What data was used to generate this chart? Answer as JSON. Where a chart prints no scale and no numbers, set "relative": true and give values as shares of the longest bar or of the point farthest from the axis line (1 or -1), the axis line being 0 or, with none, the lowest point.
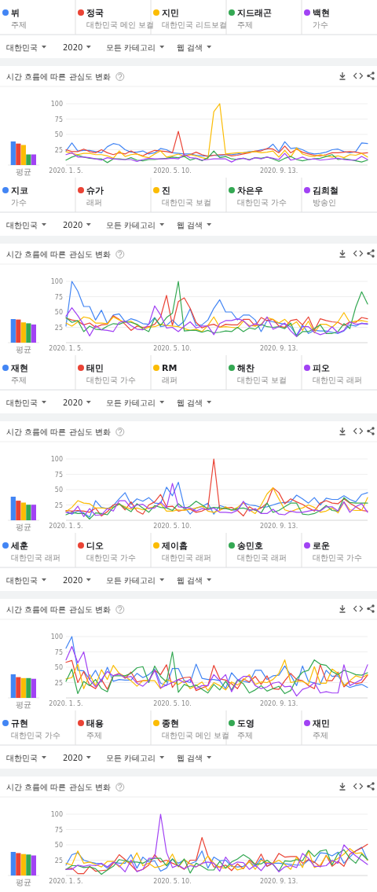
{
  "chart_data": [
    {
      "type": "line",
      "title": "시간 흐름에 따른 관심도 변화",
      "legend": "top",
      "grid": "y",
      "annotations": [
        "주제",
        "대한민국 메인 보컬",
        "대한민국 리드보컬",
        "주제",
        "가수",
        "대한민국",
        "2020",
        "모든 카테고리",
        "웹 검색"
      ],
      "x": [
        "2020-01-05",
        "2020-01-12",
        "2020-01-19",
        "2020-01-26",
        "2020-02-02",
        "2020-02-09",
        "2020-02-16",
        "2020-02-23",
        "2020-03-01",
        "2020-03-08",
        "2020-03-15",
        "2020-03-22",
        "2020-03-29",
        "2020-04-05",
        "2020-04-12",
        "2020-04-19",
        "2020-04-26",
        "2020-05-03",
        "2020-05-10",
        "2020-05-17",
        "2020-05-24",
        "2020-05-31",
        "2020-06-07",
        "2020-06-14",
        "2020-06-21",
        "2020-06-28",
        "2020-07-05",
        "2020-07-12",
        "2020-07-19",
        "2020-07-26",
        "2020-08-02",
        "2020-08-09",
        "2020-08-16",
        "2020-08-23",
        "2020-08-30",
        "2020-09-06",
        "2020-09-13",
        "2020-09-20",
        "2020-09-27",
        "2020-10-04",
        "2020-10-11",
        "2020-10-18",
        "2020-10-25",
        "2020-11-01",
        "2020-11-08",
        "2020-11-15",
        "2020-11-22",
        "2020-11-29",
        "2020-12-06",
        "2020-12-13",
        "2020-12-20",
        "2020-12-27"
      ],
      "xlim": [
        "2020-01-05",
        "2020-12-27"
      ],
      "xticks": [
        {
          "value": "2020-01-05",
          "label": "2020. 1. 5."
        },
        {
          "value": "2020-05-10",
          "label": "2020. 5. 10."
        },
        {
          "value": "2020-09-13",
          "label": "2020. 9. 13."
        }
      ],
      "ylim": [
        0,
        100
      ],
      "yticks": [
        25,
        50,
        75,
        100
      ],
      "series": [
        {
          "name": "뷔",
          "color": "#4285f4",
          "values": [
            23,
            36,
            23,
            24,
            24,
            22,
            20,
            30,
            35,
            33,
            25,
            21,
            21,
            23,
            18,
            20,
            27,
            25,
            20,
            19,
            18,
            18,
            16,
            15,
            15,
            16,
            15,
            17,
            17,
            18,
            20,
            22,
            22,
            25,
            26,
            34,
            22,
            38,
            27,
            28,
            25,
            20,
            18,
            19,
            21,
            25,
            26,
            22,
            20,
            22,
            36,
            35
          ]
        },
        {
          "name": "정국",
          "color": "#ea4335",
          "values": [
            25,
            22,
            22,
            26,
            22,
            20,
            25,
            20,
            17,
            20,
            18,
            23,
            18,
            15,
            20,
            24,
            23,
            22,
            20,
            55,
            15,
            17,
            21,
            17,
            14,
            16,
            17,
            17,
            15,
            16,
            18,
            20,
            23,
            23,
            27,
            26,
            20,
            31,
            20,
            26,
            21,
            18,
            16,
            15,
            17,
            20,
            20,
            21,
            22,
            21,
            19,
            20
          ]
        },
        {
          "name": "지민",
          "color": "#fbbc04",
          "values": [
            22,
            19,
            17,
            19,
            19,
            17,
            17,
            15,
            11,
            23,
            14,
            17,
            18,
            14,
            12,
            18,
            23,
            13,
            15,
            18,
            14,
            17,
            15,
            12,
            10,
            87,
            100,
            18,
            19,
            20,
            20,
            21,
            22,
            20,
            21,
            23,
            13,
            24,
            13,
            28,
            18,
            15,
            14,
            17,
            15,
            13,
            15,
            12,
            17,
            16,
            19,
            13
          ]
        },
        {
          "name": "지드래곤",
          "color": "#34a853",
          "values": [
            8,
            13,
            16,
            13,
            11,
            10,
            10,
            4,
            10,
            10,
            9,
            12,
            8,
            7,
            9,
            9,
            10,
            11,
            13,
            12,
            14,
            8,
            11,
            7,
            12,
            23,
            12,
            14,
            10,
            9,
            11,
            9,
            12,
            11,
            13,
            10,
            6,
            11,
            14,
            9,
            7,
            9,
            10,
            11,
            14,
            17,
            9,
            10,
            9,
            7,
            5,
            8
          ]
        },
        {
          "name": "백현",
          "color": "#a142f4",
          "values": [
            17,
            20,
            13,
            13,
            12,
            10,
            8,
            12,
            10,
            9,
            9,
            9,
            6,
            9,
            11,
            10,
            10,
            10,
            11,
            10,
            17,
            12,
            11,
            8,
            9,
            10,
            10,
            10,
            5,
            10,
            11,
            8,
            12,
            10,
            13,
            11,
            9,
            19,
            8,
            10,
            13,
            9,
            10,
            8,
            9,
            10,
            11,
            9,
            8,
            8,
            14,
            9
          ]
        }
      ]
    },
    {
      "type": "bar",
      "relative": true,
      "categories": [
        "평균"
      ],
      "series": [
        {
          "color": "#4285f4",
          "values": [
            1
          ]
        },
        {
          "color": "#ea4335",
          "values": [
            0.91
          ]
        },
        {
          "color": "#fbbc04",
          "values": [
            0.85
          ]
        },
        {
          "color": "#34a853",
          "values": [
            0.45
          ]
        },
        {
          "color": "#a142f4",
          "values": [
            0.45
          ]
        }
      ]
    },
    {
      "type": "line",
      "title": "시간 흐름에 따른 관심도 변화",
      "legend": "top",
      "grid": "y",
      "annotations": [
        "가수",
        "래퍼",
        "대한민국 보컬",
        "대한민국 가수",
        "방송인",
        "대한민국",
        "2020",
        "모든 카테고리",
        "웹 검색"
      ],
      "x": [
        "2020-01-05",
        "2020-01-12",
        "2020-01-19",
        "2020-01-26",
        "2020-02-02",
        "2020-02-09",
        "2020-02-16",
        "2020-02-23",
        "2020-03-01",
        "2020-03-08",
        "2020-03-15",
        "2020-03-22",
        "2020-03-29",
        "2020-04-05",
        "2020-04-12",
        "2020-04-19",
        "2020-04-26",
        "2020-05-03",
        "2020-05-10",
        "2020-05-17",
        "2020-05-24",
        "2020-05-31",
        "2020-06-07",
        "2020-06-14",
        "2020-06-21",
        "2020-06-28",
        "2020-07-05",
        "2020-07-12",
        "2020-07-19",
        "2020-07-26",
        "2020-08-02",
        "2020-08-09",
        "2020-08-16",
        "2020-08-23",
        "2020-08-30",
        "2020-09-06",
        "2020-09-13",
        "2020-09-20",
        "2020-09-27",
        "2020-10-04",
        "2020-10-11",
        "2020-10-18",
        "2020-10-25",
        "2020-11-01",
        "2020-11-08",
        "2020-11-15",
        "2020-11-22",
        "2020-11-29",
        "2020-12-06",
        "2020-12-13",
        "2020-12-20",
        "2020-12-27"
      ],
      "xlim": [
        "2020-01-05",
        "2020-12-27"
      ],
      "xticks": [
        {
          "value": "2020-01-05",
          "label": "2020. 1. 5."
        },
        {
          "value": "2020-05-10",
          "label": "2020. 5. 10."
        },
        {
          "value": "2020-09-13",
          "label": "2020. 9. 13."
        }
      ],
      "ylim": [
        0,
        100
      ],
      "yticks": [
        25,
        50,
        75,
        100
      ],
      "series": [
        {
          "name": "지코",
          "color": "#4285f4",
          "values": [
            27,
            100,
            84,
            59,
            59,
            37,
            53,
            31,
            45,
            47,
            34,
            39,
            36,
            31,
            30,
            41,
            26,
            28,
            37,
            27,
            35,
            55,
            28,
            29,
            37,
            56,
            70,
            50,
            50,
            37,
            45,
            45,
            37,
            18,
            36,
            34,
            32,
            30,
            26,
            12,
            29,
            15,
            20,
            19,
            19,
            17,
            15,
            19,
            29,
            27,
            32,
            30
          ]
        },
        {
          "name": "슈가",
          "color": "#ea4335",
          "values": [
            40,
            37,
            35,
            29,
            32,
            25,
            29,
            30,
            44,
            38,
            30,
            20,
            27,
            25,
            26,
            30,
            42,
            77,
            28,
            67,
            73,
            56,
            33,
            24,
            28,
            30,
            25,
            30,
            29,
            29,
            38,
            38,
            27,
            41,
            36,
            38,
            27,
            25,
            36,
            38,
            29,
            42,
            20,
            39,
            36,
            34,
            33,
            28,
            34,
            33,
            41,
            39
          ]
        },
        {
          "name": "진",
          "color": "#fbbc04",
          "values": [
            32,
            27,
            34,
            42,
            40,
            32,
            32,
            31,
            42,
            37,
            33,
            35,
            29,
            22,
            25,
            26,
            30,
            28,
            27,
            26,
            23,
            20,
            22,
            18,
            28,
            42,
            25,
            26,
            25,
            24,
            35,
            28,
            27,
            30,
            41,
            38,
            32,
            38,
            28,
            34,
            20,
            35,
            16,
            30,
            30,
            25,
            34,
            49,
            33,
            35,
            36,
            34
          ]
        },
        {
          "name": "차은우",
          "color": "#34a853",
          "values": [
            41,
            33,
            36,
            18,
            27,
            22,
            21,
            27,
            31,
            30,
            34,
            33,
            30,
            23,
            18,
            40,
            28,
            41,
            48,
            100,
            19,
            20,
            20,
            17,
            20,
            16,
            17,
            19,
            18,
            25,
            18,
            24,
            22,
            30,
            26,
            25,
            26,
            23,
            32,
            10,
            18,
            18,
            23,
            29,
            15,
            15,
            18,
            31,
            23,
            58,
            83,
            63
          ]
        },
        {
          "name": "김희철",
          "color": "#a142f4",
          "values": [
            43,
            57,
            44,
            29,
            11,
            28,
            21,
            20,
            18,
            33,
            35,
            28,
            22,
            21,
            30,
            60,
            45,
            24,
            25,
            18,
            27,
            34,
            24,
            27,
            27,
            13,
            31,
            36,
            36,
            39,
            36,
            26,
            31,
            28,
            42,
            22,
            26,
            32,
            19,
            10,
            26,
            26,
            17,
            13,
            16,
            26,
            16,
            20,
            34,
            30,
            31,
            31
          ]
        }
      ]
    },
    {
      "type": "bar",
      "relative": true,
      "categories": [
        "평균"
      ],
      "series": [
        {
          "color": "#4285f4",
          "values": [
            1
          ]
        },
        {
          "color": "#ea4335",
          "values": [
            0.98
          ]
        },
        {
          "color": "#fbbc04",
          "values": [
            0.86
          ]
        },
        {
          "color": "#34a853",
          "values": [
            0.82
          ]
        },
        {
          "color": "#a142f4",
          "values": [
            0.77
          ]
        }
      ]
    },
    {
      "type": "line",
      "title": "시간 흐름에 따른 관심도 변화",
      "legend": "top",
      "grid": "y",
      "annotations": [
        "주제",
        "대한민국 가수",
        "래퍼",
        "대한민국 보컬",
        "대한민국 래퍼",
        "대한민국",
        "2020",
        "모든 카테고리",
        "웹 검색"
      ],
      "x": [
        "2020-01-05",
        "2020-01-12",
        "2020-01-19",
        "2020-01-26",
        "2020-02-02",
        "2020-02-09",
        "2020-02-16",
        "2020-02-23",
        "2020-03-01",
        "2020-03-08",
        "2020-03-15",
        "2020-03-22",
        "2020-03-29",
        "2020-04-05",
        "2020-04-12",
        "2020-04-19",
        "2020-04-26",
        "2020-05-03",
        "2020-05-10",
        "2020-05-17",
        "2020-05-24",
        "2020-05-31",
        "2020-06-07",
        "2020-06-14",
        "2020-06-21",
        "2020-06-28",
        "2020-07-05",
        "2020-07-12",
        "2020-07-19",
        "2020-07-26",
        "2020-08-02",
        "2020-08-09",
        "2020-08-16",
        "2020-08-23",
        "2020-08-30",
        "2020-09-06",
        "2020-09-13",
        "2020-09-20",
        "2020-09-27",
        "2020-10-04",
        "2020-10-11",
        "2020-10-18",
        "2020-10-25",
        "2020-11-01",
        "2020-11-08",
        "2020-11-15",
        "2020-11-22",
        "2020-11-29",
        "2020-12-06",
        "2020-12-13",
        "2020-12-20",
        "2020-12-27"
      ],
      "xlim": [
        "2020-01-05",
        "2020-12-27"
      ],
      "xticks": [
        {
          "value": "2020-01-05",
          "label": "2020. 1. 5."
        },
        {
          "value": "2020-05-10",
          "label": "2020. 5. 10."
        },
        {
          "value": "2020-09-13",
          "label": "2020. 9. 13."
        }
      ],
      "ylim": [
        0,
        100
      ],
      "yticks": [
        25,
        50,
        75,
        100
      ],
      "series": [
        {
          "name": "재현",
          "color": "#4285f4",
          "values": [
            15,
            10,
            15,
            12,
            5,
            32,
            21,
            19,
            24,
            35,
            45,
            26,
            35,
            31,
            37,
            28,
            27,
            54,
            40,
            62,
            22,
            10,
            20,
            22,
            28,
            10,
            24,
            21,
            16,
            17,
            29,
            25,
            24,
            21,
            22,
            25,
            28,
            29,
            30,
            41,
            35,
            28,
            37,
            25,
            36,
            34,
            34,
            40,
            34,
            30,
            42,
            45
          ]
        },
        {
          "name": "태민",
          "color": "#ea4335",
          "values": [
            16,
            15,
            16,
            15,
            13,
            20,
            7,
            14,
            25,
            27,
            17,
            30,
            15,
            10,
            25,
            30,
            42,
            22,
            23,
            15,
            17,
            18,
            13,
            15,
            20,
            100,
            17,
            20,
            21,
            16,
            7,
            22,
            16,
            20,
            28,
            53,
            45,
            27,
            35,
            30,
            26,
            20,
            15,
            28,
            32,
            28,
            27,
            35,
            28,
            22,
            16,
            15
          ]
        },
        {
          "name": "RM",
          "color": "#fbbc04",
          "values": [
            14,
            21,
            32,
            28,
            27,
            20,
            20,
            19,
            21,
            26,
            22,
            18,
            20,
            17,
            20,
            22,
            27,
            15,
            15,
            17,
            16,
            18,
            20,
            23,
            15,
            13,
            16,
            22,
            16,
            21,
            29,
            17,
            11,
            25,
            43,
            53,
            35,
            17,
            14,
            18,
            20,
            25,
            21,
            13,
            15,
            20,
            12,
            30,
            17,
            16,
            16,
            37
          ]
        },
        {
          "name": "해찬",
          "color": "#34a853",
          "values": [
            9,
            13,
            11,
            11,
            2,
            12,
            11,
            9,
            21,
            27,
            20,
            14,
            27,
            20,
            13,
            24,
            21,
            20,
            16,
            27,
            19,
            23,
            31,
            25,
            19,
            21,
            20,
            19,
            17,
            19,
            20,
            17,
            17,
            12,
            28,
            13,
            16,
            22,
            28,
            28,
            10,
            9,
            11,
            16,
            24,
            16,
            15,
            37,
            29,
            28,
            28,
            28
          ]
        },
        {
          "name": "피오",
          "color": "#a142f4",
          "values": [
            13,
            11,
            23,
            6,
            19,
            8,
            9,
            19,
            15,
            32,
            32,
            20,
            25,
            26,
            19,
            20,
            30,
            20,
            60,
            22,
            21,
            20,
            15,
            19,
            17,
            20,
            13,
            13,
            12,
            16,
            31,
            15,
            19,
            11,
            11,
            18,
            10,
            9,
            15,
            13,
            13,
            15,
            17,
            15,
            22,
            22,
            15,
            30,
            13,
            22,
            27,
            13
          ]
        }
      ]
    },
    {
      "type": "bar",
      "relative": true,
      "categories": [
        "평균"
      ],
      "series": [
        {
          "color": "#4285f4",
          "values": [
            1
          ]
        },
        {
          "color": "#ea4335",
          "values": [
            0.83
          ]
        },
        {
          "color": "#fbbc04",
          "values": [
            0.75
          ]
        },
        {
          "color": "#34a853",
          "values": [
            0.66
          ]
        },
        {
          "color": "#a142f4",
          "values": [
            0.66
          ]
        }
      ]
    },
    {
      "type": "line",
      "title": "시간 흐름에 따른 관심도 변화",
      "legend": "top",
      "grid": "y",
      "annotations": [
        "대한민국 래퍼",
        "대한민국 가수",
        "대한민국 래퍼",
        "대한민국 래퍼",
        "대한민국 가수",
        "대한민국",
        "2020",
        "모든 카테고리",
        "웹 검색"
      ],
      "x": [
        "2020-01-05",
        "2020-01-12",
        "2020-01-19",
        "2020-01-26",
        "2020-02-02",
        "2020-02-09",
        "2020-02-16",
        "2020-02-23",
        "2020-03-01",
        "2020-03-08",
        "2020-03-15",
        "2020-03-22",
        "2020-03-29",
        "2020-04-05",
        "2020-04-12",
        "2020-04-19",
        "2020-04-26",
        "2020-05-03",
        "2020-05-10",
        "2020-05-17",
        "2020-05-24",
        "2020-05-31",
        "2020-06-07",
        "2020-06-14",
        "2020-06-21",
        "2020-06-28",
        "2020-07-05",
        "2020-07-12",
        "2020-07-19",
        "2020-07-26",
        "2020-08-02",
        "2020-08-09",
        "2020-08-16",
        "2020-08-23",
        "2020-08-30",
        "2020-09-06",
        "2020-09-13",
        "2020-09-20",
        "2020-09-27",
        "2020-10-04",
        "2020-10-11",
        "2020-10-18",
        "2020-10-25",
        "2020-11-01",
        "2020-11-08",
        "2020-11-15",
        "2020-11-22",
        "2020-11-29",
        "2020-12-06",
        "2020-12-13",
        "2020-12-20",
        "2020-12-27"
      ],
      "xlim": [
        "2020-01-05",
        "2020-12-27"
      ],
      "xticks": [
        {
          "value": "2020-01-05",
          "label": "2020. 1. 5."
        },
        {
          "value": "2020-05-10",
          "label": "2020. 5. 10."
        },
        {
          "value": "2020-09-13",
          "label": "2020. 9. 13."
        }
      ],
      "ylim": [
        0,
        100
      ],
      "yticks": [
        25,
        50,
        75,
        100
      ],
      "series": [
        {
          "name": "세훈",
          "color": "#4285f4",
          "values": [
            81,
            100,
            45,
            44,
            30,
            45,
            26,
            50,
            27,
            30,
            29,
            29,
            40,
            33,
            38,
            47,
            24,
            20,
            48,
            48,
            28,
            25,
            55,
            32,
            30,
            30,
            28,
            15,
            41,
            30,
            27,
            25,
            45,
            45,
            30,
            36,
            37,
            52,
            37,
            20,
            52,
            27,
            24,
            22,
            45,
            35,
            36,
            22,
            17,
            20,
            22,
            17
          ]
        },
        {
          "name": "디오",
          "color": "#ea4335",
          "values": [
            58,
            61,
            25,
            43,
            21,
            15,
            30,
            14,
            36,
            40,
            32,
            42,
            26,
            28,
            28,
            45,
            38,
            54,
            17,
            30,
            33,
            34,
            12,
            16,
            20,
            53,
            31,
            29,
            23,
            15,
            31,
            26,
            35,
            22,
            36,
            15,
            14,
            28,
            40,
            30,
            28,
            20,
            15,
            54,
            28,
            28,
            42,
            18,
            27,
            23,
            25,
            37
          ]
        },
        {
          "name": "제이홉",
          "color": "#fbbc04",
          "values": [
            31,
            33,
            55,
            15,
            38,
            20,
            46,
            30,
            53,
            40,
            35,
            28,
            19,
            28,
            28,
            28,
            15,
            30,
            26,
            22,
            28,
            15,
            20,
            26,
            12,
            25,
            20,
            13,
            26,
            21,
            29,
            38,
            22,
            26,
            25,
            30,
            40,
            62,
            25,
            27,
            27,
            22,
            51,
            24,
            24,
            47,
            40,
            20,
            28,
            36,
            33,
            38
          ]
        },
        {
          "name": "송민호",
          "color": "#34a853",
          "values": [
            27,
            47,
            7,
            27,
            20,
            30,
            15,
            10,
            36,
            36,
            36,
            40,
            49,
            51,
            25,
            52,
            35,
            26,
            75,
            9,
            22,
            18,
            21,
            14,
            8,
            22,
            13,
            27,
            13,
            29,
            23,
            8,
            13,
            20,
            11,
            15,
            19,
            7,
            12,
            31,
            42,
            45,
            62,
            55,
            53,
            43,
            38,
            45,
            42,
            38,
            37,
            41
          ]
        },
        {
          "name": "로운",
          "color": "#a142f4",
          "values": [
            62,
            84,
            57,
            75,
            30,
            18,
            30,
            43,
            36,
            39,
            33,
            35,
            24,
            19,
            28,
            45,
            16,
            21,
            25,
            30,
            25,
            30,
            15,
            20,
            20,
            38,
            28,
            38,
            10,
            28,
            35,
            35,
            20,
            15,
            18,
            24,
            26,
            18,
            19,
            3,
            14,
            17,
            25,
            8,
            10,
            8,
            8,
            54,
            20,
            25,
            30,
            54
          ]
        }
      ]
    },
    {
      "type": "bar",
      "relative": true,
      "categories": [
        "평균"
      ],
      "series": [
        {
          "color": "#4285f4",
          "values": [
            1
          ]
        },
        {
          "color": "#ea4335",
          "values": [
            0.88
          ]
        },
        {
          "color": "#fbbc04",
          "values": [
            0.84
          ]
        },
        {
          "color": "#34a853",
          "values": [
            0.84
          ]
        },
        {
          "color": "#a142f4",
          "values": [
            0.81
          ]
        }
      ]
    },
    {
      "type": "line",
      "title": "시간 흐름에 따른 관심도 변화",
      "legend": "top",
      "grid": "y",
      "annotations": [
        "대한민국 가수",
        "주제",
        "대한민국 메인 보컬",
        "주제",
        "주제",
        "대한민국",
        "2020",
        "모든 카테고리",
        "웹 검색"
      ],
      "x": [
        "2020-01-05",
        "2020-01-12",
        "2020-01-19",
        "2020-01-26",
        "2020-02-02",
        "2020-02-09",
        "2020-02-16",
        "2020-02-23",
        "2020-03-01",
        "2020-03-08",
        "2020-03-15",
        "2020-03-22",
        "2020-03-29",
        "2020-04-05",
        "2020-04-12",
        "2020-04-19",
        "2020-04-26",
        "2020-05-03",
        "2020-05-10",
        "2020-05-17",
        "2020-05-24",
        "2020-05-31",
        "2020-06-07",
        "2020-06-14",
        "2020-06-21",
        "2020-06-28",
        "2020-07-05",
        "2020-07-12",
        "2020-07-19",
        "2020-07-26",
        "2020-08-02",
        "2020-08-09",
        "2020-08-16",
        "2020-08-23",
        "2020-08-30",
        "2020-09-06",
        "2020-09-13",
        "2020-09-20",
        "2020-09-27",
        "2020-10-04",
        "2020-10-11",
        "2020-10-18",
        "2020-10-25",
        "2020-11-01",
        "2020-11-08",
        "2020-11-15",
        "2020-11-22",
        "2020-11-29",
        "2020-12-06",
        "2020-12-13",
        "2020-12-20",
        "2020-12-27"
      ],
      "xlim": [
        "2020-01-05",
        "2020-12-27"
      ],
      "xticks": [
        {
          "value": "2020-01-05",
          "label": "2020. 1. 5."
        },
        {
          "value": "2020-05-10",
          "label": "2020. 5. 10."
        },
        {
          "value": "2020-09-13",
          "label": "2020. 9. 13."
        }
      ],
      "ylim": [
        0,
        100
      ],
      "yticks": [
        25,
        50,
        75,
        100
      ],
      "series": [
        {
          "name": "규현",
          "color": "#4285f4",
          "values": [
            17,
            34,
            37,
            25,
            22,
            20,
            19,
            12,
            22,
            20,
            20,
            34,
            12,
            30,
            22,
            24,
            7,
            12,
            27,
            20,
            25,
            19,
            23,
            40,
            12,
            30,
            24,
            25,
            15,
            14,
            15,
            22,
            15,
            28,
            15,
            20,
            20,
            19,
            18,
            17,
            17,
            25,
            21,
            37,
            36,
            32,
            38,
            20,
            30,
            40,
            46,
            25
          ]
        },
        {
          "name": "태용",
          "color": "#ea4335",
          "values": [
            10,
            12,
            3,
            3,
            15,
            7,
            8,
            9,
            20,
            34,
            26,
            17,
            7,
            10,
            17,
            34,
            22,
            25,
            20,
            16,
            10,
            25,
            25,
            62,
            32,
            14,
            14,
            17,
            8,
            19,
            11,
            25,
            18,
            35,
            15,
            20,
            36,
            30,
            31,
            31,
            20,
            26,
            22,
            14,
            33,
            15,
            23,
            15,
            35,
            40,
            45,
            51
          ]
        },
        {
          "name": "종현",
          "color": "#fbbc04",
          "values": [
            20,
            17,
            40,
            20,
            22,
            18,
            14,
            23,
            23,
            14,
            24,
            20,
            37,
            16,
            20,
            13,
            15,
            19,
            35,
            14,
            26,
            19,
            14,
            19,
            32,
            20,
            13,
            12,
            17,
            9,
            12,
            23,
            10,
            25,
            21,
            20,
            25,
            18,
            10,
            30,
            13,
            40,
            13,
            17,
            32,
            22,
            28,
            35,
            44,
            36,
            37,
            25
          ]
        },
        {
          "name": "도영",
          "color": "#34a853",
          "values": [
            10,
            16,
            16,
            13,
            14,
            11,
            2,
            9,
            15,
            26,
            24,
            22,
            22,
            20,
            25,
            28,
            28,
            16,
            27,
            15,
            27,
            4,
            20,
            15,
            9,
            9,
            23,
            12,
            22,
            27,
            34,
            28,
            18,
            19,
            25,
            18,
            7,
            24,
            23,
            26,
            24,
            41,
            31,
            40,
            42,
            17,
            36,
            42,
            28,
            20,
            35,
            26
          ]
        },
        {
          "name": "재민",
          "color": "#a142f4",
          "values": [
            10,
            10,
            17,
            15,
            17,
            16,
            20,
            14,
            22,
            16,
            6,
            25,
            6,
            10,
            28,
            28,
            100,
            38,
            13,
            17,
            11,
            16,
            14,
            20,
            22,
            20,
            7,
            30,
            17,
            22,
            21,
            10,
            17,
            8,
            20,
            19,
            6,
            14,
            16,
            13,
            36,
            28,
            15,
            15,
            16,
            25,
            20,
            50,
            40,
            32,
            25,
            18
          ]
        }
      ]
    },
    {
      "type": "bar",
      "relative": true,
      "categories": [
        "평균"
      ],
      "series": [
        {
          "color": "#4285f4",
          "values": [
            1
          ]
        },
        {
          "color": "#ea4335",
          "values": [
            0.95
          ]
        },
        {
          "color": "#fbbc04",
          "values": [
            0.91
          ]
        },
        {
          "color": "#34a853",
          "values": [
            0.89
          ]
        },
        {
          "color": "#a142f4",
          "values": [
            0.85
          ]
        }
      ]
    }
  ]
}
